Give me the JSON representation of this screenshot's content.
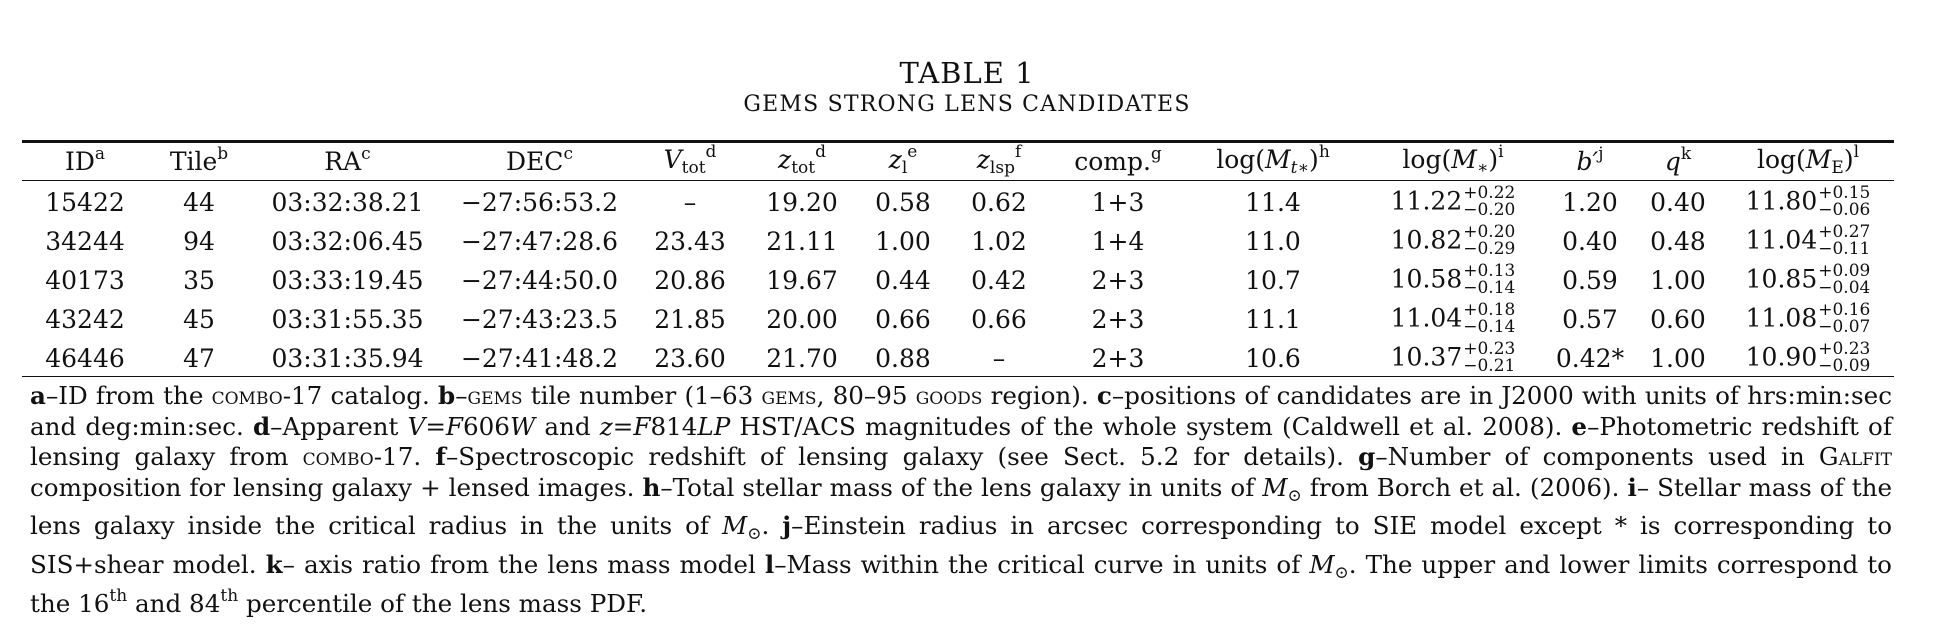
{
  "title": "TABLE 1",
  "subtitle": "GEMS STRONG LENS CANDIDATES",
  "headers": {
    "id": "ID",
    "id_note": "a",
    "tile": "Tile",
    "tile_note": "b",
    "ra": "RA",
    "ra_note": "c",
    "dec": "DEC",
    "dec_note": "c",
    "vtot_var": "V",
    "vtot_sub": "tot",
    "vtot_note": "d",
    "ztot_var": "z",
    "ztot_sub": "tot",
    "ztot_note": "d",
    "zl_var": "z",
    "zl_sub": "l",
    "zl_note": "e",
    "zlsp_var": "z",
    "zlsp_sub": "lsp",
    "zlsp_note": "f",
    "comp": "comp.",
    "comp_note": "g",
    "mt_pre": "log(",
    "mt_var": "M",
    "mt_sub": "t∗",
    "mt_post": ")",
    "mt_note": "h",
    "ms_pre": "log(",
    "ms_var": "M",
    "ms_sub": "∗",
    "ms_post": ")",
    "ms_note": "i",
    "b_var": "b′",
    "b_note": "j",
    "q_var": "q",
    "q_note": "k",
    "me_pre": "log(",
    "me_var": "M",
    "me_sub": "E",
    "me_post": ")",
    "me_note": "l"
  },
  "rows": [
    {
      "id": "15422",
      "tile": "44",
      "ra": "03:32:38.21",
      "dec": "−27:56:53.2",
      "vtot": "–",
      "ztot": "19.20",
      "zl": "0.58",
      "zlsp": "0.62",
      "comp": "1+3",
      "mt": "11.4",
      "ms": "11.22",
      "ms_up": "+0.22",
      "ms_lo": "−0.20",
      "b": "1.20",
      "q": "0.40",
      "me": "11.80",
      "me_up": "+0.15",
      "me_lo": "−0.06"
    },
    {
      "id": "34244",
      "tile": "94",
      "ra": "03:32:06.45",
      "dec": "−27:47:28.6",
      "vtot": "23.43",
      "ztot": "21.11",
      "zl": "1.00",
      "zlsp": "1.02",
      "comp": "1+4",
      "mt": "11.0",
      "ms": "10.82",
      "ms_up": "+0.20",
      "ms_lo": "−0.29",
      "b": "0.40",
      "q": "0.48",
      "me": "11.04",
      "me_up": "+0.27",
      "me_lo": "−0.11"
    },
    {
      "id": "40173",
      "tile": "35",
      "ra": "03:33:19.45",
      "dec": "−27:44:50.0",
      "vtot": "20.86",
      "ztot": "19.67",
      "zl": "0.44",
      "zlsp": "0.42",
      "comp": "2+3",
      "mt": "10.7",
      "ms": "10.58",
      "ms_up": "+0.13",
      "ms_lo": "−0.14",
      "b": "0.59",
      "q": "1.00",
      "me": "10.85",
      "me_up": "+0.09",
      "me_lo": "−0.04"
    },
    {
      "id": "43242",
      "tile": "45",
      "ra": "03:31:55.35",
      "dec": "−27:43:23.5",
      "vtot": "21.85",
      "ztot": "20.00",
      "zl": "0.66",
      "zlsp": "0.66",
      "comp": "2+3",
      "mt": "11.1",
      "ms": "11.04",
      "ms_up": "+0.18",
      "ms_lo": "−0.14",
      "b": "0.57",
      "q": "0.60",
      "me": "11.08",
      "me_up": "+0.16",
      "me_lo": "−0.07"
    },
    {
      "id": "46446",
      "tile": "47",
      "ra": "03:31:35.94",
      "dec": "−27:41:48.2",
      "vtot": "23.60",
      "ztot": "21.70",
      "zl": "0.88",
      "zlsp": "–",
      "comp": "2+3",
      "mt": "10.6",
      "ms": "10.37",
      "ms_up": "+0.23",
      "ms_lo": "−0.21",
      "b": "0.42*",
      "q": "1.00",
      "me": "10.90",
      "me_up": "+0.23",
      "me_lo": "−0.09"
    }
  ],
  "footnotes": {
    "a_key": "a",
    "a_t1": "–ID from the ",
    "a_sc": "combo",
    "a_t2": "-17 catalog. ",
    "b_key": "b",
    "b_t1": "–",
    "b_sc1": "gems",
    "b_t2": " tile number (1–63 ",
    "b_sc2": "gems",
    "b_t3": ", 80–95 ",
    "b_sc3": "goods",
    "b_t4": " region). ",
    "c_key": "c",
    "c_t1": "–positions of candidates are in J2000 with units of hrs:min:sec and deg:min:sec. ",
    "d_key": "d",
    "d_t1": "–Apparent ",
    "d_v": "V",
    "d_eq1": "=",
    "d_f1": "F",
    "d_n1": "606",
    "d_w": "W",
    "d_and": " and ",
    "d_z": "z",
    "d_eq2": "=",
    "d_f2": "F",
    "d_n2": "814",
    "d_lp": "LP",
    "d_t2": " HST/ACS magnitudes of the whole system (Caldwell et al. 2008). ",
    "e_key": "e",
    "e_t1": "–Photometric redshift of lensing galaxy from ",
    "e_sc": "combo",
    "e_t2": "-17. ",
    "f_key": "f",
    "f_t1": "–Spectroscopic redshift of lensing galaxy (see Sect. 5.2 for details). ",
    "g_key": "g",
    "g_t1": "–Number of components used in G",
    "g_sc": "alfit",
    "g_t2": " composition for lensing galaxy + lensed images. ",
    "h_key": "h",
    "h_t1": "–Total stellar mass of the lens galaxy in units of ",
    "h_m": "M",
    "h_sun": "⊙",
    "h_t2": " from Borch et al. (2006). ",
    "i_key": "i",
    "i_t1": "– Stellar mass of the lens galaxy inside the critical radius in the units of ",
    "i_m": "M",
    "i_sun": "⊙",
    "i_t2": ". ",
    "j_key": "j",
    "j_t1": "–Einstein radius in arcsec corresponding to SIE model except * is corresponding to SIS+shear model. ",
    "k_key": "k",
    "k_t1": "– axis ratio from the lens mass model ",
    "l_key": "l",
    "l_t1": "–Mass within the critical curve in units of ",
    "l_m": "M",
    "l_sun": "⊙",
    "l_t2": ". The upper and lower limits correspond to the 16",
    "l_th1": "th",
    "l_t3": " and 84",
    "l_th2": "th",
    "l_t4": " percentile of the lens mass PDF."
  }
}
